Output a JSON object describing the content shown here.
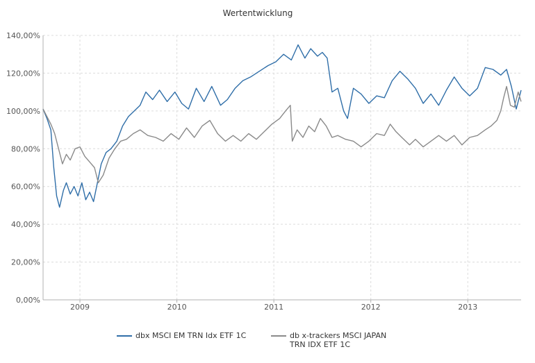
{
  "chart_data": {
    "type": "line",
    "title": "Wertentwicklung",
    "xlabel": "",
    "ylabel": "",
    "x_ticks": [
      "2009",
      "2010",
      "2011",
      "2012",
      "2013"
    ],
    "y_ticks": [
      "0,00%",
      "20,00%",
      "40,00%",
      "60,00%",
      "80,00%",
      "100,00%",
      "120,00%",
      "140,00%"
    ],
    "ylim": [
      0,
      140
    ],
    "xlim": [
      2008.62,
      2013.55
    ],
    "grid": true,
    "legend_position": "bottom",
    "series": [
      {
        "name": "dbx MSCI EM TRN Idx ETF 1C",
        "color": "#2f6ea8",
        "x": [
          2008.62,
          2008.66,
          2008.7,
          2008.73,
          2008.76,
          2008.79,
          2008.83,
          2008.86,
          2008.9,
          2008.94,
          2008.98,
          2009.02,
          2009.06,
          2009.1,
          2009.14,
          2009.18,
          2009.22,
          2009.27,
          2009.32,
          2009.38,
          2009.44,
          2009.5,
          2009.56,
          2009.62,
          2009.68,
          2009.75,
          2009.82,
          2009.9,
          2009.98,
          2010.05,
          2010.12,
          2010.2,
          2010.28,
          2010.36,
          2010.45,
          2010.52,
          2010.6,
          2010.68,
          2010.76,
          2010.85,
          2010.94,
          2011.02,
          2011.1,
          2011.18,
          2011.25,
          2011.32,
          2011.38,
          2011.45,
          2011.5,
          2011.55,
          2011.6,
          2011.66,
          2011.72,
          2011.76,
          2011.82,
          2011.9,
          2011.98,
          2012.06,
          2012.14,
          2012.22,
          2012.3,
          2012.38,
          2012.46,
          2012.54,
          2012.62,
          2012.7,
          2012.78,
          2012.86,
          2012.94,
          2013.02,
          2013.1,
          2013.18,
          2013.26,
          2013.34,
          2013.4,
          2013.45,
          2013.5,
          2013.55
        ],
        "y": [
          101,
          96,
          90,
          70,
          55,
          49,
          58,
          62,
          56,
          60,
          55,
          62,
          53,
          57,
          52,
          62,
          72,
          78,
          80,
          84,
          92,
          97,
          100,
          103,
          110,
          106,
          111,
          105,
          110,
          104,
          101,
          112,
          105,
          113,
          103,
          106,
          112,
          116,
          118,
          121,
          124,
          126,
          130,
          127,
          135,
          128,
          133,
          129,
          131,
          128,
          110,
          112,
          100,
          96,
          112,
          109,
          104,
          108,
          107,
          116,
          121,
          117,
          112,
          104,
          109,
          103,
          111,
          118,
          112,
          108,
          112,
          123,
          122,
          119,
          122,
          113,
          101,
          111
        ]
      },
      {
        "name": "db x-trackers MSCI JAPAN\nTRN IDX ETF 1C",
        "color": "#8a8a8a",
        "x": [
          2008.62,
          2008.66,
          2008.7,
          2008.74,
          2008.78,
          2008.82,
          2008.86,
          2008.9,
          2008.95,
          2009.0,
          2009.05,
          2009.1,
          2009.15,
          2009.19,
          2009.24,
          2009.3,
          2009.36,
          2009.42,
          2009.48,
          2009.55,
          2009.62,
          2009.7,
          2009.78,
          2009.86,
          2009.94,
          2010.02,
          2010.1,
          2010.18,
          2010.26,
          2010.34,
          2010.42,
          2010.5,
          2010.58,
          2010.66,
          2010.74,
          2010.82,
          2010.9,
          2010.98,
          2011.06,
          2011.12,
          2011.17,
          2011.19,
          2011.24,
          2011.3,
          2011.36,
          2011.42,
          2011.48,
          2011.54,
          2011.6,
          2011.66,
          2011.74,
          2011.82,
          2011.9,
          2011.98,
          2012.06,
          2012.14,
          2012.2,
          2012.26,
          2012.32,
          2012.4,
          2012.46,
          2012.54,
          2012.62,
          2012.7,
          2012.78,
          2012.86,
          2012.94,
          2013.02,
          2013.1,
          2013.18,
          2013.24,
          2013.3,
          2013.34,
          2013.37,
          2013.4,
          2013.44,
          2013.48,
          2013.52,
          2013.55
        ],
        "y": [
          101,
          97,
          93,
          88,
          80,
          72,
          77,
          74,
          80,
          81,
          76,
          73,
          70,
          62,
          66,
          75,
          80,
          84,
          85,
          88,
          90,
          87,
          86,
          84,
          88,
          85,
          91,
          86,
          92,
          95,
          88,
          84,
          87,
          84,
          88,
          85,
          89,
          93,
          96,
          100,
          103,
          84,
          90,
          86,
          92,
          89,
          96,
          92,
          86,
          87,
          85,
          84,
          81,
          84,
          88,
          87,
          93,
          89,
          86,
          82,
          85,
          81,
          84,
          87,
          84,
          87,
          82,
          86,
          87,
          90,
          92,
          95,
          100,
          107,
          113,
          103,
          102,
          110,
          105
        ]
      }
    ]
  }
}
